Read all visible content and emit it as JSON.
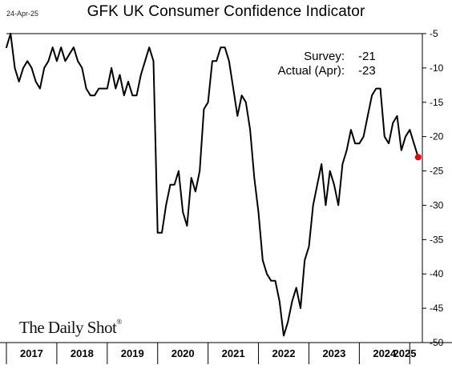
{
  "date_stamp": "24-Apr-25",
  "source": "The Daily Shot",
  "source_mark": "®",
  "colors": {
    "line": "#000000",
    "highlight_point": "#e8000b",
    "axis": "#000000"
  },
  "annotations": {
    "survey_label": "Survey:",
    "survey_value": "-21",
    "actual_label": "Actual (Apr):",
    "actual_value": "-23"
  },
  "chart_data": {
    "type": "line",
    "title": "GFK UK Consumer Confidence Indicator",
    "xlabel": "",
    "ylabel": "",
    "ylim": [
      -50,
      -5
    ],
    "y_ticks": [
      -5,
      -10,
      -15,
      -20,
      -25,
      -30,
      -35,
      -40,
      -45,
      -50
    ],
    "y_axis_position": "right",
    "grid": false,
    "legend": "none",
    "x_categories": [
      "2017",
      "2018",
      "2019",
      "2020",
      "2021",
      "2022",
      "2023",
      "2024",
      "2025"
    ],
    "x_range": [
      "2017-01",
      "2025-04"
    ],
    "series": [
      {
        "values": [
          [
            "2017-01",
            -7
          ],
          [
            "2017-02",
            -5
          ],
          [
            "2017-03",
            -10
          ],
          [
            "2017-04",
            -12
          ],
          [
            "2017-05",
            -10
          ],
          [
            "2017-06",
            -9
          ],
          [
            "2017-07",
            -10
          ],
          [
            "2017-08",
            -12
          ],
          [
            "2017-09",
            -13
          ],
          [
            "2017-10",
            -10
          ],
          [
            "2017-11",
            -9
          ],
          [
            "2017-12",
            -7
          ],
          [
            "2018-01",
            -9
          ],
          [
            "2018-02",
            -7
          ],
          [
            "2018-03",
            -9
          ],
          [
            "2018-04",
            -8
          ],
          [
            "2018-05",
            -7
          ],
          [
            "2018-06",
            -9
          ],
          [
            "2018-07",
            -10
          ],
          [
            "2018-08",
            -13
          ],
          [
            "2018-09",
            -14
          ],
          [
            "2018-10",
            -14
          ],
          [
            "2018-11",
            -13
          ],
          [
            "2018-12",
            -13
          ],
          [
            "2019-01",
            -13
          ],
          [
            "2019-02",
            -10
          ],
          [
            "2019-03",
            -13
          ],
          [
            "2019-04",
            -11
          ],
          [
            "2019-05",
            -14
          ],
          [
            "2019-06",
            -12
          ],
          [
            "2019-07",
            -14
          ],
          [
            "2019-08",
            -14
          ],
          [
            "2019-09",
            -11
          ],
          [
            "2019-10",
            -9
          ],
          [
            "2019-11",
            -7
          ],
          [
            "2019-12",
            -9
          ],
          [
            "2020-01",
            -34
          ],
          [
            "2020-02",
            -34
          ],
          [
            "2020-03",
            -30
          ],
          [
            "2020-04",
            -27
          ],
          [
            "2020-05",
            -27
          ],
          [
            "2020-06",
            -25
          ],
          [
            "2020-07",
            -31
          ],
          [
            "2020-08",
            -33
          ],
          [
            "2020-09",
            -26
          ],
          [
            "2020-10",
            -28
          ],
          [
            "2020-11",
            -25
          ],
          [
            "2020-12",
            -16
          ],
          [
            "2021-01",
            -15
          ],
          [
            "2021-02",
            -9
          ],
          [
            "2021-03",
            -9
          ],
          [
            "2021-04",
            -7
          ],
          [
            "2021-05",
            -7
          ],
          [
            "2021-06",
            -9
          ],
          [
            "2021-07",
            -13
          ],
          [
            "2021-08",
            -17
          ],
          [
            "2021-09",
            -14
          ],
          [
            "2021-10",
            -15
          ],
          [
            "2021-11",
            -19
          ],
          [
            "2021-12",
            -26
          ],
          [
            "2022-01",
            -31
          ],
          [
            "2022-02",
            -38
          ],
          [
            "2022-03",
            -40
          ],
          [
            "2022-04",
            -41
          ],
          [
            "2022-05",
            -41
          ],
          [
            "2022-06",
            -44
          ],
          [
            "2022-07",
            -49
          ],
          [
            "2022-08",
            -47
          ],
          [
            "2022-09",
            -44
          ],
          [
            "2022-10",
            -42
          ],
          [
            "2022-11",
            -45
          ],
          [
            "2022-12",
            -38
          ],
          [
            "2023-01",
            -36
          ],
          [
            "2023-02",
            -30
          ],
          [
            "2023-03",
            -27
          ],
          [
            "2023-04",
            -24
          ],
          [
            "2023-05",
            -30
          ],
          [
            "2023-06",
            -25
          ],
          [
            "2023-07",
            -27
          ],
          [
            "2023-08",
            -30
          ],
          [
            "2023-09",
            -24
          ],
          [
            "2023-10",
            -22
          ],
          [
            "2023-11",
            -19
          ],
          [
            "2023-12",
            -21
          ],
          [
            "2024-01",
            -21
          ],
          [
            "2024-02",
            -20
          ],
          [
            "2024-03",
            -17
          ],
          [
            "2024-04",
            -14
          ],
          [
            "2024-05",
            -13
          ],
          [
            "2024-06",
            -13
          ],
          [
            "2024-07",
            -20
          ],
          [
            "2024-08",
            -21
          ],
          [
            "2024-09",
            -18
          ],
          [
            "2024-10",
            -17
          ],
          [
            "2024-11",
            -22
          ],
          [
            "2024-12",
            -20
          ],
          [
            "2025-01",
            -19
          ],
          [
            "2025-02",
            -21
          ],
          [
            "2025-03",
            -23
          ]
        ]
      }
    ],
    "highlight_point": [
      "2025-03",
      -23
    ]
  }
}
